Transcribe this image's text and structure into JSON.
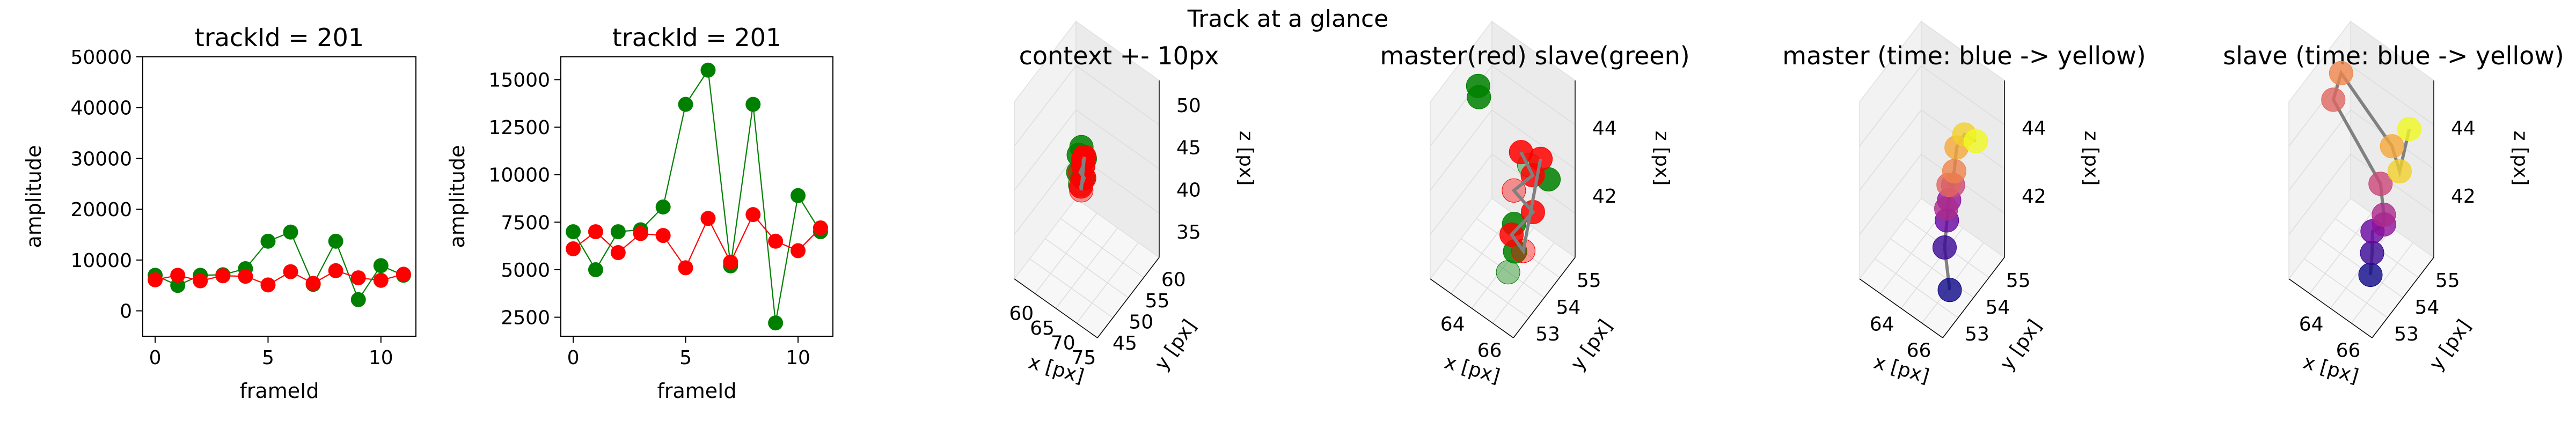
{
  "figure": {
    "suptitle": "Track at a glance"
  },
  "colors": {
    "master": "#ff0000",
    "slave": "#008000",
    "line": "#808080",
    "time_colormap": [
      "#0d0887",
      "#7e03a8",
      "#cc4778",
      "#f89540",
      "#f0f921"
    ]
  },
  "chart_data": [
    {
      "type": "line",
      "title": "trackId = 201",
      "xlabel": "frameId",
      "ylabel": "amplitude",
      "x": [
        0,
        1,
        2,
        3,
        4,
        5,
        6,
        7,
        8,
        9,
        10,
        11
      ],
      "xticks": [
        "0",
        "5",
        "10"
      ],
      "yticks": [
        "0",
        "10000",
        "20000",
        "30000",
        "40000",
        "50000"
      ],
      "xlim": [
        -0.55,
        11.55
      ],
      "ylim": [
        -5000,
        50000
      ],
      "series": [
        {
          "role": "master",
          "color": "#ff0000",
          "values": [
            6100,
            7000,
            5900,
            6900,
            6800,
            5100,
            7700,
            5400,
            7900,
            6500,
            6000,
            7200
          ]
        },
        {
          "role": "slave",
          "color": "#008000",
          "values": [
            7000,
            5000,
            7000,
            7100,
            8300,
            13700,
            15500,
            5200,
            13700,
            2200,
            8900,
            7000
          ]
        }
      ]
    },
    {
      "type": "line",
      "title": "trackId = 201",
      "xlabel": "frameId",
      "ylabel": "amplitude",
      "x": [
        0,
        1,
        2,
        3,
        4,
        5,
        6,
        7,
        8,
        9,
        10,
        11
      ],
      "xticks": [
        "0",
        "5",
        "10"
      ],
      "yticks": [
        "2500",
        "5000",
        "7500",
        "10000",
        "12500",
        "15000"
      ],
      "xlim": [
        -0.55,
        11.55
      ],
      "ylim": [
        1500,
        16200
      ],
      "series": [
        {
          "role": "master",
          "color": "#ff0000",
          "values": [
            6100,
            7000,
            5900,
            6900,
            6800,
            5100,
            7700,
            5400,
            7900,
            6500,
            6000,
            7200
          ]
        },
        {
          "role": "slave",
          "color": "#008000",
          "values": [
            7000,
            5000,
            7000,
            7100,
            8300,
            13700,
            15500,
            5200,
            13700,
            2200,
            8900,
            7000
          ]
        }
      ]
    },
    {
      "type": "scatter",
      "projection": "3d",
      "title": "context +- 10px",
      "xlabel": "x [px]",
      "ylabel": "y [px]",
      "zlabel": "z [px]",
      "xticks": [
        "60",
        "65",
        "70",
        "75"
      ],
      "yticks": [
        "45",
        "50",
        "55",
        "60"
      ],
      "zticks": [
        "35",
        "40",
        "45",
        "50"
      ],
      "xlim": [
        57,
        77
      ],
      "ylim": [
        44,
        63
      ],
      "zlim": [
        32,
        53
      ],
      "master_points": [
        [
          65,
          55,
          43.5
        ],
        [
          65.3,
          54.6,
          43
        ],
        [
          64.8,
          54.3,
          42.2
        ],
        [
          65.6,
          54.5,
          41.7
        ],
        [
          65.2,
          54,
          40.8
        ],
        [
          64.9,
          54.5,
          40
        ],
        [
          65.4,
          54.8,
          44
        ]
      ],
      "slave_points": [
        [
          64.4,
          55.2,
          44.6
        ],
        [
          63.9,
          55,
          43.6
        ],
        [
          64.6,
          55.5,
          42.4
        ],
        [
          64.1,
          54.6,
          41.8
        ],
        [
          64.7,
          55.3,
          41
        ],
        [
          64.3,
          54.9,
          40.3
        ],
        [
          64.9,
          55.6,
          43.2
        ]
      ]
    },
    {
      "type": "scatter",
      "projection": "3d",
      "title": "master(red) slave(green)",
      "xlabel": "x [px]",
      "ylabel": "y [px]",
      "zlabel": "z [px]",
      "xticks": [
        "64",
        "66"
      ],
      "yticks": [
        "53",
        "54",
        "55"
      ],
      "zticks": [
        "42",
        "44"
      ],
      "xlim": [
        62.5,
        67
      ],
      "ylim": [
        52.5,
        55.5
      ],
      "zlim": [
        40.2,
        45.4
      ],
      "master_points": [
        [
          66.3,
          53.5,
          44.6
        ],
        [
          66.6,
          53.8,
          43.8
        ],
        [
          65.8,
          53.6,
          43.2
        ],
        [
          66.5,
          53.9,
          42.6
        ],
        [
          65.9,
          53.4,
          42.1
        ],
        [
          66.2,
          53.7,
          41.5
        ],
        [
          66.8,
          54,
          44.2
        ]
      ],
      "slave_points": [
        [
          63.2,
          54.2,
          44.8
        ],
        [
          62.8,
          54.6,
          44
        ],
        [
          66.3,
          53.9,
          43.9
        ],
        [
          65.7,
          53.7,
          42.1
        ],
        [
          66.2,
          53.3,
          41.8
        ],
        [
          65.6,
          53.5,
          40.8
        ],
        [
          66.9,
          54.3,
          43.4
        ]
      ]
    },
    {
      "type": "scatter",
      "projection": "3d",
      "title": "master (time: blue -> yellow)",
      "xlabel": "x [px]",
      "ylabel": "y [px]",
      "zlabel": "z [px]",
      "xticks": [
        "64",
        "66"
      ],
      "yticks": [
        "53",
        "54",
        "55"
      ],
      "zticks": [
        "42",
        "44"
      ],
      "xlim": [
        62.5,
        67
      ],
      "ylim": [
        52.5,
        55.5
      ],
      "zlim": [
        40.2,
        45.4
      ],
      "points_in_time_order": [
        [
          66.6,
          53.2,
          40.9
        ],
        [
          66.1,
          53.4,
          41.8
        ],
        [
          66,
          53.6,
          42.4
        ],
        [
          65.9,
          53.8,
          42.8
        ],
        [
          66.3,
          53.3,
          43.1
        ],
        [
          66,
          53.9,
          43.2
        ],
        [
          66.2,
          53.5,
          43.6
        ],
        [
          66.4,
          53.6,
          44
        ],
        [
          66.3,
          53.8,
          44.5
        ],
        [
          66.5,
          54,
          44.8
        ],
        [
          66.9,
          54.2,
          44.6
        ]
      ]
    },
    {
      "type": "scatter",
      "projection": "3d",
      "title": "slave (time: blue -> yellow)",
      "xlabel": "x [px]",
      "ylabel": "y [px]",
      "zlabel": "z [px]",
      "xticks": [
        "64",
        "66"
      ],
      "yticks": [
        "53",
        "54",
        "55"
      ],
      "zticks": [
        "42",
        "44"
      ],
      "xlim": [
        62.5,
        67
      ],
      "ylim": [
        52.5,
        55.5
      ],
      "zlim": [
        40.2,
        45.4
      ],
      "points_in_time_order": [
        [
          65.8,
          53.5,
          40.8
        ],
        [
          66,
          53.4,
          41.6
        ],
        [
          65.8,
          53.6,
          42
        ],
        [
          66.2,
          53.8,
          42.2
        ],
        [
          66.3,
          53.7,
          42.6
        ],
        [
          65.9,
          53.9,
          43.2
        ],
        [
          62.9,
          54.3,
          44.2
        ],
        [
          63.1,
          54.5,
          44.9
        ],
        [
          66.3,
          54.1,
          44.3
        ],
        [
          66.6,
          54.2,
          43.6
        ],
        [
          66.9,
          54.4,
          44.8
        ]
      ]
    }
  ]
}
